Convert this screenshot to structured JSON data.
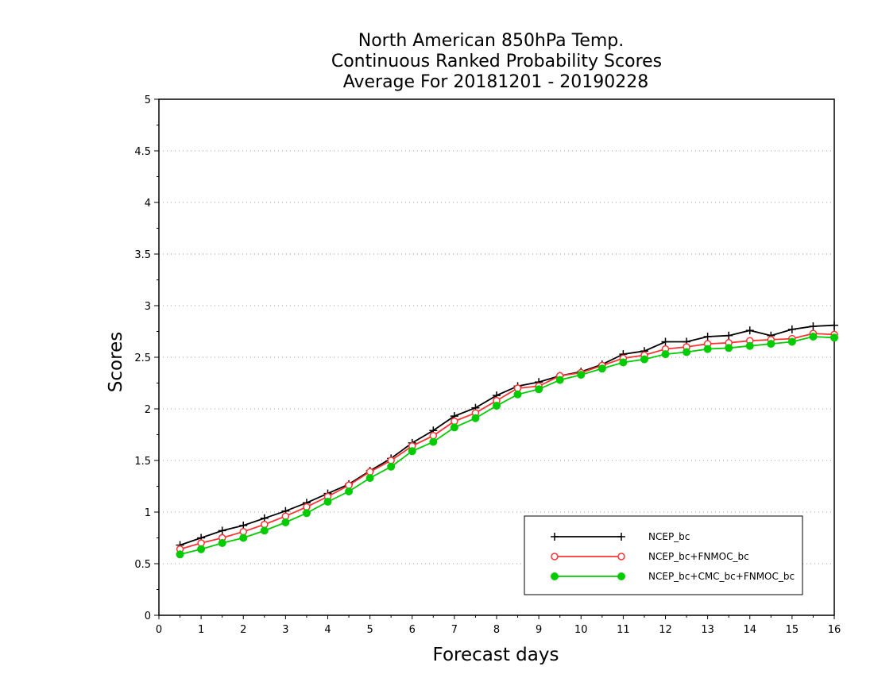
{
  "chart_data": {
    "type": "line",
    "title": [
      "North American 850hPa Temp.",
      "Continuous Ranked Probability Scores",
      "Average For 20181201 - 20190228"
    ],
    "xlabel": "Forecast days",
    "ylabel": "Scores",
    "xlim": [
      0,
      16
    ],
    "ylim": [
      0,
      5
    ],
    "x_ticks": [
      0,
      1,
      2,
      3,
      4,
      5,
      6,
      7,
      8,
      9,
      10,
      11,
      12,
      13,
      14,
      15,
      16
    ],
    "y_ticks": [
      0,
      0.5,
      1,
      1.5,
      2,
      2.5,
      3,
      3.5,
      4,
      4.5,
      5
    ],
    "grid": "horizontal dotted",
    "legend_position": "bottom-right",
    "x": [
      0.5,
      1,
      1.5,
      2,
      2.5,
      3,
      3.5,
      4,
      4.5,
      5,
      5.5,
      6,
      6.5,
      7,
      7.5,
      8,
      8.5,
      9,
      9.5,
      10,
      10.5,
      11,
      11.5,
      12,
      12.5,
      13,
      13.5,
      14,
      14.5,
      15,
      15.5,
      16
    ],
    "series": [
      {
        "name": "NCEP_bc",
        "color": "#000000",
        "marker": "plus",
        "values": [
          0.68,
          0.75,
          0.82,
          0.87,
          0.94,
          1.01,
          1.09,
          1.18,
          1.27,
          1.4,
          1.52,
          1.67,
          1.79,
          1.93,
          2.01,
          2.13,
          2.22,
          2.26,
          2.32,
          2.36,
          2.43,
          2.53,
          2.56,
          2.65,
          2.65,
          2.7,
          2.71,
          2.76,
          2.71,
          2.77,
          2.8,
          2.81
        ]
      },
      {
        "name": "NCEP_bc+FNMOC_bc",
        "color": "#ff3333",
        "marker": "open-circle",
        "values": [
          0.64,
          0.7,
          0.75,
          0.81,
          0.88,
          0.96,
          1.05,
          1.15,
          1.26,
          1.39,
          1.5,
          1.64,
          1.74,
          1.88,
          1.96,
          2.08,
          2.2,
          2.22,
          2.32,
          2.35,
          2.42,
          2.49,
          2.52,
          2.58,
          2.6,
          2.63,
          2.64,
          2.66,
          2.67,
          2.68,
          2.73,
          2.72
        ]
      },
      {
        "name": "NCEP_bc+CMC_bc+FNMOC_bc",
        "color": "#00cc00",
        "marker": "filled-circle",
        "values": [
          0.59,
          0.64,
          0.7,
          0.75,
          0.82,
          0.9,
          0.99,
          1.1,
          1.2,
          1.33,
          1.44,
          1.59,
          1.68,
          1.82,
          1.91,
          2.03,
          2.14,
          2.19,
          2.28,
          2.33,
          2.39,
          2.45,
          2.48,
          2.53,
          2.55,
          2.58,
          2.59,
          2.61,
          2.63,
          2.65,
          2.7,
          2.69
        ]
      }
    ]
  }
}
